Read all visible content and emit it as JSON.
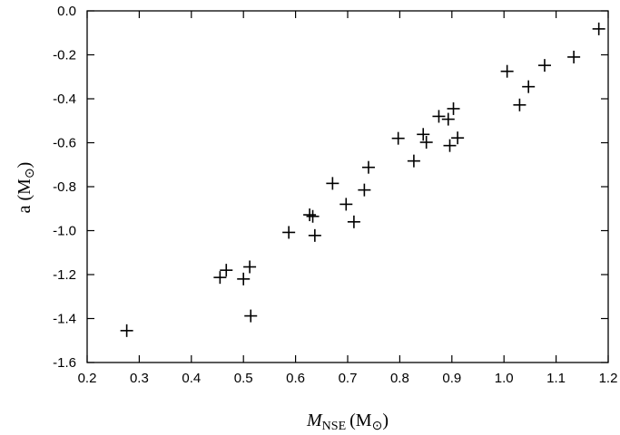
{
  "chart_data": {
    "type": "scatter",
    "marker": "plus",
    "xlabel_main": "M",
    "xlabel_sub": "NSE",
    "xlabel_unit": "(M",
    "xlabel_unit_close": ")",
    "ylabel_main": "a (M",
    "ylabel_unit_close": ")",
    "sun_symbol": "⊙",
    "xlim": [
      0.2,
      1.2
    ],
    "ylim": [
      -1.6,
      0.0
    ],
    "xticks": [
      0.2,
      0.3,
      0.4,
      0.5,
      0.6,
      0.7,
      0.8,
      0.9,
      1.0,
      1.1,
      1.2
    ],
    "xtick_labels": [
      "0.2",
      "0.3",
      "0.4",
      "0.5",
      "0.6",
      "0.7",
      "0.8",
      "0.9",
      "1.0",
      "1.1",
      "1.2"
    ],
    "yticks": [
      0.0,
      -0.2,
      -0.4,
      -0.6,
      -0.8,
      -1.0,
      -1.2,
      -1.4,
      -1.6
    ],
    "ytick_labels": [
      "0.0",
      "-0.2",
      "-0.4",
      "-0.6",
      "-0.8",
      "-1.0",
      "-1.2",
      "-1.4",
      "-1.6"
    ],
    "grid": false,
    "colors": {
      "marker": "#000000",
      "axis": "#000000",
      "background": "#ffffff"
    },
    "points": [
      {
        "x": 0.276,
        "y": -1.455
      },
      {
        "x": 0.455,
        "y": -1.213
      },
      {
        "x": 0.467,
        "y": -1.18
      },
      {
        "x": 0.5,
        "y": -1.22
      },
      {
        "x": 0.512,
        "y": -1.165
      },
      {
        "x": 0.514,
        "y": -1.388
      },
      {
        "x": 0.587,
        "y": -1.008
      },
      {
        "x": 0.627,
        "y": -0.928
      },
      {
        "x": 0.633,
        "y": -0.935
      },
      {
        "x": 0.637,
        "y": -1.022
      },
      {
        "x": 0.671,
        "y": -0.785
      },
      {
        "x": 0.697,
        "y": -0.88
      },
      {
        "x": 0.712,
        "y": -0.96
      },
      {
        "x": 0.732,
        "y": -0.815
      },
      {
        "x": 0.74,
        "y": -0.712
      },
      {
        "x": 0.797,
        "y": -0.58
      },
      {
        "x": 0.827,
        "y": -0.683
      },
      {
        "x": 0.845,
        "y": -0.562
      },
      {
        "x": 0.851,
        "y": -0.598
      },
      {
        "x": 0.875,
        "y": -0.48
      },
      {
        "x": 0.893,
        "y": -0.493
      },
      {
        "x": 0.896,
        "y": -0.613
      },
      {
        "x": 0.903,
        "y": -0.445
      },
      {
        "x": 0.911,
        "y": -0.578
      },
      {
        "x": 1.006,
        "y": -0.275
      },
      {
        "x": 1.03,
        "y": -0.428
      },
      {
        "x": 1.047,
        "y": -0.345
      },
      {
        "x": 1.078,
        "y": -0.248
      },
      {
        "x": 1.134,
        "y": -0.21
      },
      {
        "x": 1.182,
        "y": -0.082
      }
    ]
  }
}
